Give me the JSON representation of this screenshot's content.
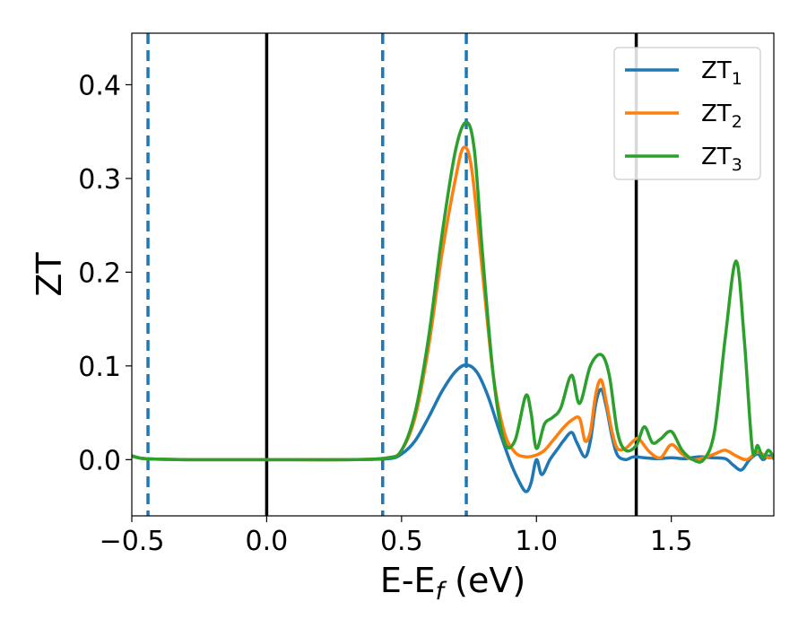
{
  "chart_data": {
    "type": "line",
    "title": "",
    "xlabel": {
      "main": "E-E",
      "sub": "f",
      "rest": " (eV)"
    },
    "ylabel": "ZT",
    "xlim": [
      -0.5,
      1.88
    ],
    "ylim": [
      -0.06,
      0.455
    ],
    "xticks": [
      -0.5,
      0.0,
      0.5,
      1.0,
      1.5
    ],
    "xtick_labels": [
      "−0.5",
      "0.0",
      "0.5",
      "1.0",
      "1.5"
    ],
    "yticks": [
      0.0,
      0.1,
      0.2,
      0.3,
      0.4
    ],
    "ytick_labels": [
      "0.0",
      "0.1",
      "0.2",
      "0.3",
      "0.4"
    ],
    "grid": false,
    "legend_position": "top-right",
    "colors": {
      "ZT1": "#1f77b4",
      "ZT2": "#ff7f0e",
      "ZT3": "#2ca02c",
      "black": "#000000"
    },
    "vlines_solid": [
      0.0,
      1.37
    ],
    "vlines_dashed": [
      -0.44,
      0.43,
      0.74
    ],
    "series": [
      {
        "name": "ZT",
        "sub": "1",
        "color": "#1f77b4",
        "x": [
          -0.5,
          -0.45,
          -0.3,
          0.0,
          0.3,
          0.45,
          0.5,
          0.55,
          0.6,
          0.65,
          0.7,
          0.74,
          0.78,
          0.82,
          0.86,
          0.9,
          0.93,
          0.96,
          0.98,
          1.0,
          1.02,
          1.05,
          1.08,
          1.1,
          1.13,
          1.15,
          1.18,
          1.2,
          1.22,
          1.24,
          1.26,
          1.28,
          1.3,
          1.33,
          1.36,
          1.4,
          1.45,
          1.5,
          1.55,
          1.6,
          1.65,
          1.7,
          1.73,
          1.76,
          1.79,
          1.82,
          1.84,
          1.86,
          1.88
        ],
        "y": [
          0.004,
          0.001,
          0.0,
          0.0,
          0.0,
          0.001,
          0.006,
          0.02,
          0.045,
          0.073,
          0.094,
          0.101,
          0.093,
          0.068,
          0.033,
          0.0,
          -0.02,
          -0.034,
          -0.025,
          0.0,
          -0.016,
          0.0,
          0.012,
          0.02,
          0.029,
          0.018,
          0.003,
          0.02,
          0.06,
          0.075,
          0.055,
          0.025,
          0.005,
          0.0,
          0.003,
          0.002,
          0.001,
          0.002,
          0.001,
          0.003,
          0.002,
          0.001,
          -0.006,
          -0.011,
          0.0,
          0.006,
          0.0,
          0.004,
          0.001
        ]
      },
      {
        "name": "ZT",
        "sub": "2",
        "color": "#ff7f0e",
        "x": [
          -0.5,
          -0.45,
          -0.3,
          0.0,
          0.3,
          0.45,
          0.5,
          0.55,
          0.6,
          0.65,
          0.7,
          0.73,
          0.76,
          0.8,
          0.84,
          0.88,
          0.92,
          0.96,
          1.0,
          1.03,
          1.06,
          1.1,
          1.13,
          1.16,
          1.18,
          1.2,
          1.22,
          1.24,
          1.26,
          1.28,
          1.3,
          1.33,
          1.36,
          1.38,
          1.42,
          1.46,
          1.5,
          1.54,
          1.58,
          1.62,
          1.66,
          1.7,
          1.74,
          1.78,
          1.82,
          1.86,
          1.88
        ],
        "y": [
          0.004,
          0.001,
          0.0,
          0.0,
          0.0,
          0.002,
          0.01,
          0.045,
          0.12,
          0.22,
          0.3,
          0.333,
          0.31,
          0.2,
          0.09,
          0.03,
          0.008,
          0.003,
          0.005,
          0.01,
          0.02,
          0.034,
          0.042,
          0.044,
          0.02,
          0.03,
          0.07,
          0.085,
          0.06,
          0.03,
          0.012,
          0.012,
          0.02,
          0.022,
          0.008,
          0.002,
          0.016,
          0.006,
          0.0,
          0.002,
          0.006,
          0.01,
          0.004,
          0.0,
          0.008,
          0.002,
          0.003
        ]
      },
      {
        "name": "ZT",
        "sub": "3",
        "color": "#2ca02c",
        "x": [
          -0.5,
          -0.45,
          -0.3,
          0.0,
          0.3,
          0.45,
          0.5,
          0.55,
          0.6,
          0.65,
          0.7,
          0.74,
          0.77,
          0.8,
          0.84,
          0.88,
          0.92,
          0.96,
          0.98,
          1.0,
          1.03,
          1.06,
          1.09,
          1.13,
          1.16,
          1.2,
          1.24,
          1.27,
          1.3,
          1.33,
          1.37,
          1.4,
          1.43,
          1.46,
          1.5,
          1.54,
          1.58,
          1.62,
          1.66,
          1.7,
          1.74,
          1.77,
          1.8,
          1.82,
          1.84,
          1.86,
          1.88
        ],
        "y": [
          0.004,
          0.001,
          0.0,
          0.0,
          0.0,
          0.002,
          0.01,
          0.05,
          0.13,
          0.24,
          0.33,
          0.36,
          0.33,
          0.22,
          0.09,
          0.02,
          0.02,
          0.068,
          0.05,
          0.012,
          0.038,
          0.045,
          0.055,
          0.09,
          0.06,
          0.1,
          0.112,
          0.09,
          0.03,
          0.01,
          0.015,
          0.035,
          0.018,
          0.022,
          0.03,
          0.01,
          0.0,
          0.0,
          0.03,
          0.13,
          0.212,
          0.13,
          0.012,
          0.015,
          0.002,
          0.01,
          0.002
        ]
      }
    ]
  }
}
